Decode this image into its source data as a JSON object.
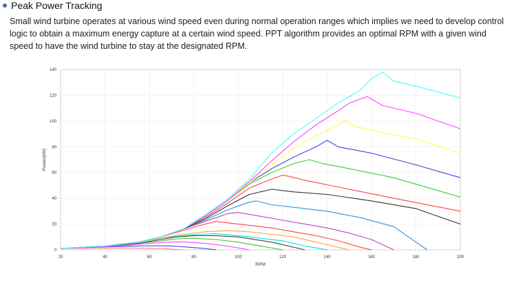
{
  "section": {
    "title": "Peak Power Tracking",
    "description": "Small wind turbine operates at various wind speed even during normal operation ranges which implies we need to develop control logic to obtain a maximum energy capture at a certain wind speed. PPT algorithm provides an optimal RPM with a given wind speed to have the wind turbine to stay at the designated RPM."
  },
  "chart_data": {
    "type": "line",
    "title": "",
    "xlabel": "RPM",
    "ylabel": "Power(kW)",
    "xlim": [
      20,
      200
    ],
    "ylim": [
      0,
      140
    ],
    "xticks": [
      20,
      40,
      60,
      80,
      100,
      120,
      140,
      160,
      180,
      200
    ],
    "yticks": [
      0,
      20,
      40,
      60,
      80,
      100,
      120,
      140
    ],
    "grid": true,
    "series": [
      {
        "color": "#ff8080",
        "x": [
          20,
          30,
          40,
          50,
          58,
          65,
          70,
          75
        ],
        "y": [
          1,
          1.2,
          1.3,
          1.4,
          1.3,
          1.0,
          0.5,
          0
        ]
      },
      {
        "color": "#4040ff",
        "x": [
          20,
          35,
          50,
          60,
          70,
          78,
          85,
          90
        ],
        "y": [
          1,
          2,
          2.8,
          3.2,
          3.0,
          2.0,
          1,
          0
        ]
      },
      {
        "color": "#ff40ff",
        "x": [
          20,
          35,
          50,
          60,
          68,
          75,
          85,
          95,
          105
        ],
        "y": [
          1,
          2,
          3.5,
          5,
          6,
          6.2,
          5,
          3,
          0
        ]
      },
      {
        "color": "#40c040",
        "x": [
          20,
          40,
          55,
          65,
          72,
          80,
          90,
          100,
          110,
          120
        ],
        "y": [
          1,
          3,
          5,
          7,
          8.5,
          9,
          8,
          6,
          3,
          0
        ]
      },
      {
        "color": "#404040",
        "x": [
          20,
          40,
          55,
          65,
          72,
          80,
          90,
          100,
          115,
          130
        ],
        "y": [
          1,
          3,
          5,
          8,
          10,
          11,
          11,
          10,
          6,
          0
        ]
      },
      {
        "color": "#00e0e0",
        "x": [
          20,
          40,
          55,
          65,
          75,
          82,
          90,
          100,
          110,
          120,
          130,
          140
        ],
        "y": [
          1,
          3,
          6,
          9,
          11,
          12,
          12.5,
          11,
          9,
          7,
          3,
          0
        ]
      },
      {
        "color": "#ffa040",
        "x": [
          20,
          40,
          55,
          65,
          75,
          85,
          95,
          105,
          115,
          125,
          135,
          145,
          150
        ],
        "y": [
          1,
          3,
          6,
          9,
          12,
          14,
          15,
          14,
          12,
          10,
          6,
          2,
          0
        ]
      },
      {
        "color": "#ff4040",
        "x": [
          20,
          40,
          55,
          65,
          75,
          85,
          90,
          95,
          105,
          115,
          125,
          135,
          145,
          155,
          160
        ],
        "y": [
          1,
          3,
          6,
          10,
          15,
          20,
          22,
          21,
          19,
          17,
          14,
          11,
          7,
          2,
          0
        ]
      },
      {
        "color": "#c040c0",
        "x": [
          20,
          40,
          55,
          65,
          75,
          85,
          95,
          100,
          110,
          120,
          130,
          140,
          150,
          160,
          170
        ],
        "y": [
          1,
          3,
          6,
          10,
          16,
          22,
          28,
          29,
          26,
          23,
          20,
          17,
          13,
          8,
          0
        ]
      },
      {
        "color": "#3090e0",
        "x": [
          20,
          40,
          55,
          65,
          75,
          85,
          95,
          105,
          108,
          115,
          125,
          140,
          155,
          170,
          185
        ],
        "y": [
          1,
          3,
          6,
          10,
          16,
          23,
          31,
          37,
          38,
          35,
          33,
          30,
          25,
          18,
          0
        ]
      },
      {
        "color": "#303030",
        "x": [
          20,
          40,
          55,
          65,
          75,
          85,
          95,
          105,
          115,
          125,
          140,
          160,
          180,
          200
        ],
        "y": [
          1,
          3,
          6,
          10,
          16,
          24,
          34,
          43,
          47,
          45,
          43,
          38,
          32,
          20
        ]
      },
      {
        "color": "#ff4040",
        "x": [
          20,
          40,
          55,
          65,
          75,
          85,
          95,
          105,
          115,
          120,
          123,
          130,
          150,
          170,
          200
        ],
        "y": [
          1,
          3,
          6,
          10,
          16,
          25,
          36,
          48,
          55,
          58,
          57,
          54,
          47,
          40,
          30
        ]
      },
      {
        "color": "#30d030",
        "x": [
          20,
          40,
          55,
          65,
          75,
          85,
          95,
          105,
          115,
          125,
          132,
          138,
          150,
          170,
          200
        ],
        "y": [
          1,
          3,
          6,
          10,
          16,
          26,
          38,
          51,
          60,
          67,
          70,
          67,
          63,
          56,
          41
        ]
      },
      {
        "color": "#4040e0",
        "x": [
          20,
          40,
          55,
          65,
          75,
          85,
          95,
          105,
          115,
          125,
          135,
          140,
          145,
          160,
          180,
          200
        ],
        "y": [
          1,
          3,
          6,
          10,
          16,
          26,
          38,
          52,
          63,
          72,
          80,
          85,
          80,
          75,
          66,
          56
        ]
      },
      {
        "color": "#ffff40",
        "x": [
          20,
          40,
          55,
          65,
          75,
          85,
          95,
          105,
          115,
          125,
          135,
          145,
          148,
          152,
          165,
          180,
          200
        ],
        "y": [
          1,
          3,
          6,
          10,
          16,
          26,
          38,
          52,
          66,
          79,
          89,
          97,
          101,
          96,
          91,
          86,
          75
        ]
      },
      {
        "color": "#ff40ff",
        "x": [
          20,
          40,
          55,
          65,
          75,
          85,
          95,
          105,
          115,
          125,
          135,
          145,
          150,
          155,
          158,
          165,
          180,
          200
        ],
        "y": [
          1,
          3,
          6,
          10,
          16,
          26,
          38,
          53,
          69,
          84,
          97,
          108,
          114,
          117,
          119,
          112,
          106,
          94
        ]
      },
      {
        "color": "#40ffff",
        "x": [
          20,
          40,
          55,
          65,
          75,
          85,
          95,
          105,
          115,
          125,
          135,
          145,
          155,
          160,
          165,
          170,
          180,
          200
        ],
        "y": [
          1,
          3,
          6,
          10,
          16,
          27,
          39,
          55,
          75,
          90,
          102,
          114,
          124,
          133,
          138,
          131,
          127,
          118
        ]
      }
    ]
  }
}
